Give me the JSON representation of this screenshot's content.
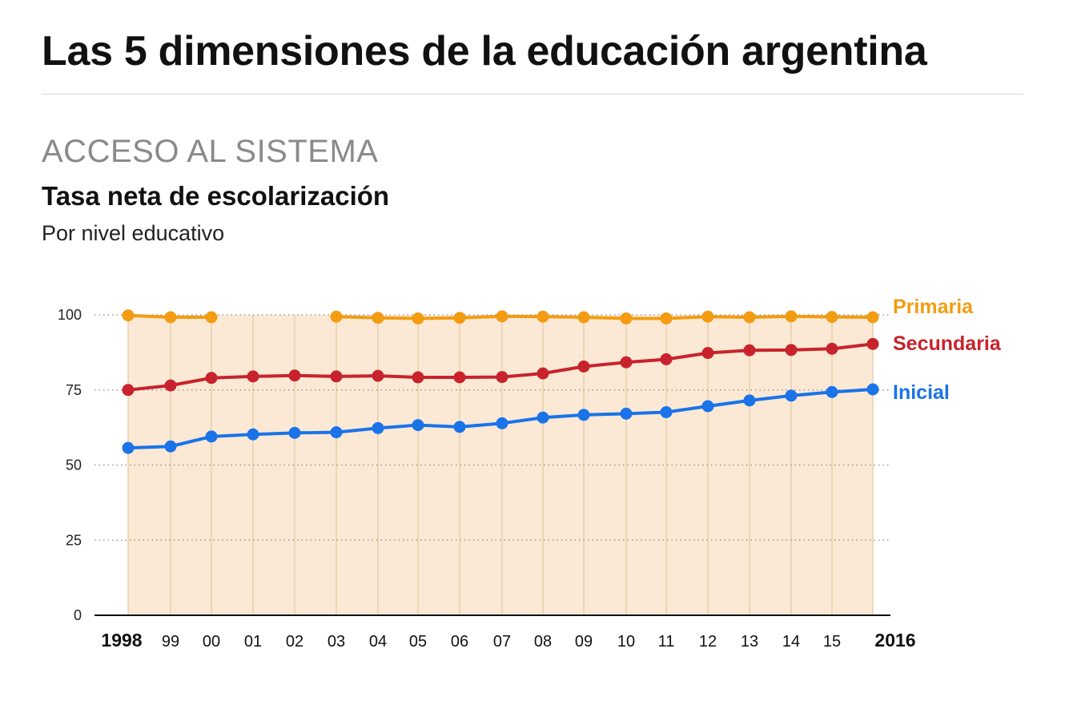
{
  "header": {
    "title": "Las 5 dimensiones de la educación argentina",
    "section": "ACCESO AL SISTEMA"
  },
  "colors": {
    "primaria": "#f39c12",
    "secundaria": "#c8232c",
    "inicial": "#1a73e8",
    "area_fill": "#fbe9d5",
    "vertical_grid": "#e6cfae"
  },
  "chart_data": {
    "type": "line",
    "title": "Tasa neta de escolarización",
    "subtitle": "Por nivel educativo",
    "xlabel": "",
    "ylabel": "",
    "ylim": [
      0,
      100
    ],
    "yticks": [
      "0",
      "25",
      "50",
      "75",
      "100"
    ],
    "x": [
      "1998",
      "99",
      "00",
      "01",
      "02",
      "03",
      "04",
      "05",
      "06",
      "07",
      "08",
      "09",
      "10",
      "11",
      "12",
      "13",
      "14",
      "15",
      "2016"
    ],
    "grid": "horizontal dotted",
    "legend": "inline labels at right end of lines",
    "series": [
      {
        "name": "Primaria",
        "key": "primaria",
        "values": [
          99.8,
          99.2,
          99.2,
          null,
          null,
          99.4,
          99.0,
          98.8,
          99.0,
          99.5,
          99.4,
          99.2,
          98.8,
          98.8,
          99.4,
          99.2,
          99.5,
          99.3,
          99.2
        ]
      },
      {
        "name": "Secundaria",
        "key": "secundaria",
        "values": [
          75.0,
          76.5,
          79.0,
          79.5,
          79.8,
          79.5,
          79.7,
          79.2,
          79.2,
          79.3,
          80.5,
          82.8,
          84.2,
          85.2,
          87.3,
          88.2,
          88.3,
          88.7,
          90.3
        ]
      },
      {
        "name": "Inicial",
        "key": "inicial",
        "values": [
          55.7,
          56.2,
          59.5,
          60.2,
          60.7,
          60.9,
          62.3,
          63.3,
          62.7,
          63.9,
          65.8,
          66.7,
          67.1,
          67.6,
          69.6,
          71.5,
          73.1,
          74.3,
          75.2
        ]
      }
    ]
  }
}
